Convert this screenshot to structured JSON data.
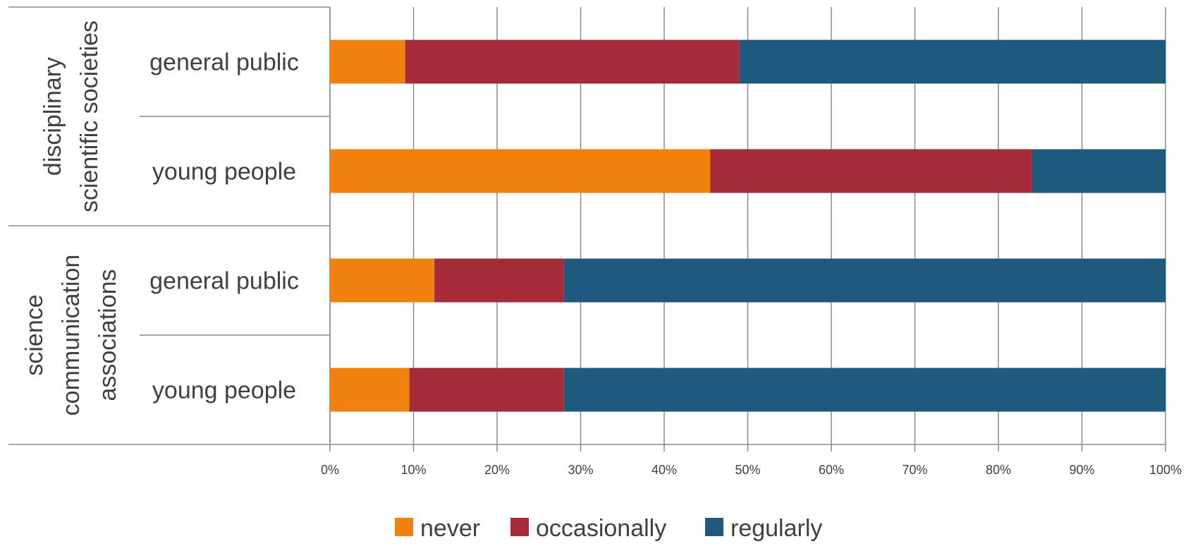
{
  "chart_data": {
    "type": "bar",
    "orientation": "horizontal",
    "stacked": "percent",
    "groups": [
      {
        "label_lines": [
          "disciplinary",
          "scientific societies"
        ],
        "categories": [
          "general public",
          "young people"
        ]
      },
      {
        "label_lines": [
          "science",
          "communication",
          "associations"
        ],
        "categories": [
          "general public",
          "young people"
        ]
      }
    ],
    "series": [
      {
        "name": "never",
        "color": "#F0810F",
        "values": [
          9,
          45.5,
          12.5,
          9.5
        ]
      },
      {
        "name": "occasionally",
        "color": "#A52A3A",
        "values": [
          40,
          38.5,
          15.5,
          18.5
        ]
      },
      {
        "name": "regularly",
        "color": "#1F5A7E",
        "values": [
          51,
          16,
          72,
          72
        ]
      }
    ],
    "xlim": [
      0,
      100
    ],
    "x_ticks": [
      "0%",
      "10%",
      "20%",
      "30%",
      "40%",
      "50%",
      "60%",
      "70%",
      "80%",
      "90%",
      "100%"
    ],
    "grid": true,
    "legend_position": "bottom"
  }
}
